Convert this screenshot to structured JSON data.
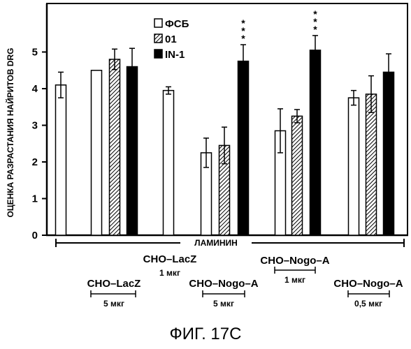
{
  "chart_data": {
    "type": "bar",
    "ylabel": "ОЦЕНКА РАЗРАСТАНИЯ НАЙРИТОВ DRG",
    "ylim": [
      0,
      5.9
    ],
    "yticks": [
      "0",
      "1",
      "2",
      "3",
      "4",
      "5"
    ],
    "legend_placement": "top-center",
    "series": [
      {
        "name": "ФСБ",
        "pattern": "open",
        "color": "#ffffff"
      },
      {
        "name": "01",
        "pattern": "hatched",
        "color": "#000000"
      },
      {
        "name": "IN-1",
        "pattern": "solid",
        "color": "#000000"
      }
    ],
    "bars": [
      {
        "series": "ФСБ",
        "value": 4.1,
        "error": 0.35
      },
      {
        "series": "ФСБ",
        "value": 4.5,
        "error": 0
      },
      {
        "series": "01",
        "value": 4.8,
        "error": 0.28
      },
      {
        "series": "IN-1",
        "value": 4.6,
        "error": 0.5
      },
      {
        "series": "ФСБ",
        "value": 3.95,
        "error": 0.1
      },
      {
        "series": "ФСБ",
        "value": 2.25,
        "error": 0.4
      },
      {
        "series": "01",
        "value": 2.45,
        "error": 0.5
      },
      {
        "series": "IN-1",
        "value": 4.75,
        "error": 0.45,
        "annotation": "***"
      },
      {
        "series": "ФСБ",
        "value": 2.85,
        "error": 0.6
      },
      {
        "series": "01",
        "value": 3.25,
        "error": 0.18
      },
      {
        "series": "IN-1",
        "value": 5.05,
        "error": 0.4,
        "annotation": "***"
      },
      {
        "series": "ФСБ",
        "value": 3.75,
        "error": 0.2
      },
      {
        "series": "01",
        "value": 3.85,
        "error": 0.5
      },
      {
        "series": "IN-1",
        "value": 4.45,
        "error": 0.5
      }
    ],
    "bracket_label": "ЛАМИНИН",
    "groups": [
      {
        "label": "CHO–LacZ",
        "dose": "5 мкг"
      },
      {
        "label": "CHO–LacZ",
        "dose": "1 мкг"
      },
      {
        "label": "CHO–Nogo–A",
        "dose": "5 мкг"
      },
      {
        "label": "CHO–Nogo–A",
        "dose": "1 мкг"
      },
      {
        "label": "CHO–Nogo–A",
        "dose": "0,5 мкг"
      }
    ]
  },
  "figure_caption": "ФИГ. 17C"
}
